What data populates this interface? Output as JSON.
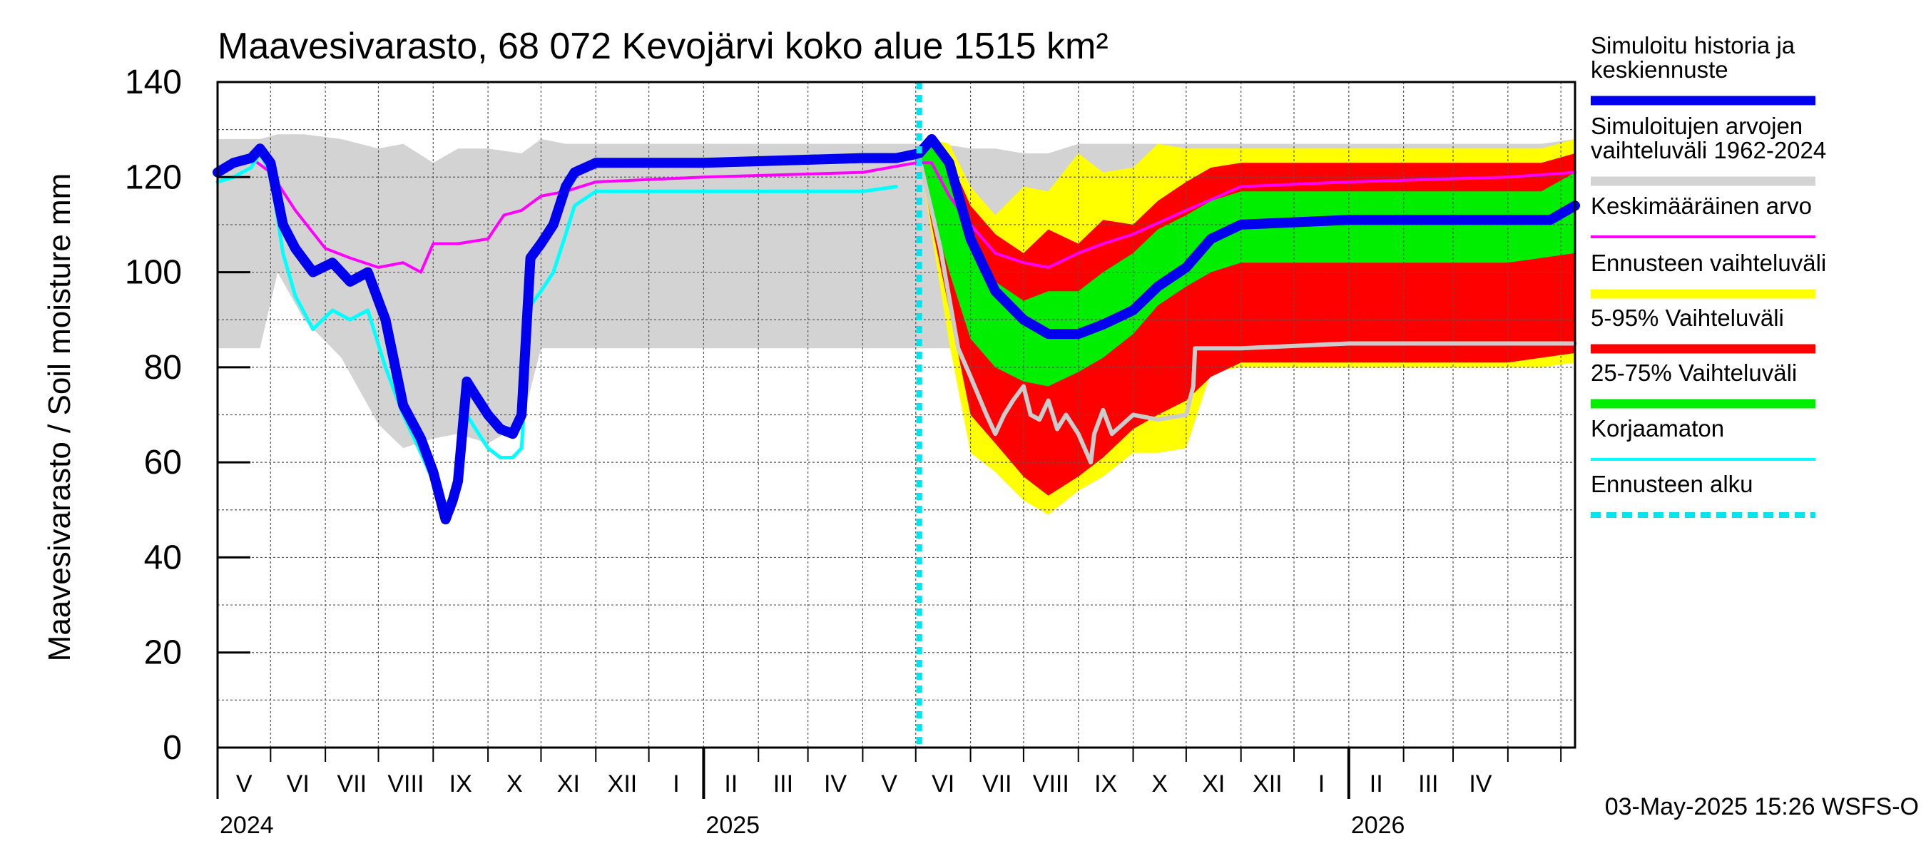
{
  "chart_data": {
    "type": "area",
    "title": "Maavesivarasto, 68 072 Kevojärvi koko alue 1515 km²",
    "ylabel": "Maavesivarasto / Soil moisture   mm",
    "ylim": [
      0,
      140
    ],
    "yticks": [
      0,
      20,
      40,
      60,
      80,
      100,
      120,
      140
    ],
    "x_range": [
      "2024-04-01",
      "2026-05-09"
    ],
    "forecast_start": "2025-05-03",
    "grid": true,
    "legend_position": "right",
    "months": [
      "V",
      "VI",
      "VII",
      "VIII",
      "IX",
      "X",
      "XI",
      "XII",
      "I",
      "II",
      "III",
      "IV",
      "V",
      "VI",
      "VII",
      "VIII",
      "IX",
      "X",
      "XI",
      "XII",
      "I",
      "II",
      "III",
      "IV"
    ],
    "years": [
      "2024",
      "2025",
      "2026"
    ],
    "legend": [
      {
        "label": "Simuloitu historia ja keskiennuste",
        "color": "#0000ee",
        "style": "thick"
      },
      {
        "label": "Simuloitujen arvojen vaihteluväli 1962-2024",
        "color": "#d3d3d3",
        "style": "thick"
      },
      {
        "label": "Keskimääräinen arvo",
        "color": "#ff00ff",
        "style": "thin"
      },
      {
        "label": "Ennusteen vaihteluväli",
        "color": "#ffff00",
        "style": "thick"
      },
      {
        "label": "5-95% Vaihteluväli",
        "color": "#ff0000",
        "style": "thick"
      },
      {
        "label": "25-75% Vaihteluväli",
        "color": "#00ee00",
        "style": "thick"
      },
      {
        "label": "Korjaamaton",
        "color": "#00ffff",
        "style": "thin"
      },
      {
        "label": "Ennusteen alku",
        "color": "#00e5ee",
        "style": "dashed"
      }
    ],
    "footer": "03-May-2025 15:26 WSFS-O",
    "series": {
      "hist_band": {
        "name": "Simuloitujen arvojen vaihteluväli 1962-2024",
        "x": [
          "2024-04-01",
          "2024-04-20",
          "2024-04-25",
          "2024-05-05",
          "2024-05-20",
          "2024-06-10",
          "2024-07-01",
          "2024-07-15",
          "2024-08-01",
          "2024-08-15",
          "2024-09-01",
          "2024-09-20",
          "2024-10-01",
          "2024-10-15",
          "2024-11-01",
          "2025-01-01",
          "2025-04-10",
          "2025-04-20",
          "2025-05-01",
          "2025-05-15",
          "2025-06-01",
          "2025-06-15",
          "2025-07-01",
          "2025-07-15",
          "2025-08-01",
          "2025-08-15",
          "2025-09-01",
          "2025-10-01",
          "2025-11-01",
          "2026-01-01",
          "2026-04-10",
          "2026-04-20",
          "2026-05-09"
        ],
        "upper": [
          128,
          128,
          128,
          129,
          129,
          128,
          126,
          127,
          123,
          126,
          126,
          125,
          128,
          127,
          127,
          127,
          127,
          127,
          127,
          127,
          126,
          126,
          125,
          125,
          127,
          127,
          127,
          127,
          127,
          127,
          127,
          127,
          128
        ],
        "lower": [
          84,
          84,
          84,
          100,
          90,
          82,
          68,
          63,
          65,
          66,
          64,
          68,
          84,
          84,
          84,
          84,
          84,
          84,
          84,
          84,
          84,
          84,
          84,
          84,
          84,
          84,
          84,
          84,
          84,
          84,
          84,
          84,
          84
        ]
      },
      "yellow_band": {
        "name": "Ennusteen vaihteluväli",
        "x": [
          "2025-05-03",
          "2025-05-10",
          "2025-05-20",
          "2025-06-01",
          "2025-06-15",
          "2025-07-01",
          "2025-07-15",
          "2025-08-01",
          "2025-08-15",
          "2025-09-01",
          "2025-09-15",
          "2025-10-01",
          "2025-10-15",
          "2025-11-01",
          "2026-01-01",
          "2026-04-01",
          "2026-04-20",
          "2026-05-09"
        ],
        "upper": [
          126,
          128,
          127,
          118,
          112,
          118,
          117,
          125,
          121,
          122,
          127,
          126,
          126,
          126,
          126,
          126,
          126,
          128
        ],
        "lower": [
          124,
          108,
          85,
          62,
          58,
          52,
          49,
          54,
          57,
          62,
          62,
          63,
          79,
          80,
          80,
          80,
          80,
          81
        ]
      },
      "red_band": {
        "name": "5-95% Vaihteluväli",
        "x": [
          "2025-05-03",
          "2025-05-10",
          "2025-05-20",
          "2025-06-01",
          "2025-06-15",
          "2025-07-01",
          "2025-07-15",
          "2025-08-01",
          "2025-08-15",
          "2025-09-01",
          "2025-09-15",
          "2025-10-01",
          "2025-10-15",
          "2025-11-01",
          "2026-01-01",
          "2026-04-01",
          "2026-04-20",
          "2026-05-09"
        ],
        "upper": [
          126,
          127,
          124,
          114,
          108,
          104,
          109,
          106,
          111,
          110,
          115,
          119,
          122,
          123,
          123,
          123,
          123,
          125
        ],
        "lower": [
          124,
          110,
          92,
          70,
          64,
          57,
          53,
          57,
          61,
          67,
          70,
          73,
          78,
          81,
          81,
          81,
          82,
          83
        ]
      },
      "green_band": {
        "name": "25-75% Vaihteluväli",
        "x": [
          "2025-05-03",
          "2025-05-10",
          "2025-05-20",
          "2025-06-01",
          "2025-06-15",
          "2025-07-01",
          "2025-07-15",
          "2025-08-01",
          "2025-08-15",
          "2025-09-01",
          "2025-09-15",
          "2025-10-01",
          "2025-10-15",
          "2025-11-01",
          "2026-01-01",
          "2026-04-01",
          "2026-04-20",
          "2026-05-09"
        ],
        "upper": [
          126,
          127,
          123,
          108,
          98,
          94,
          96,
          96,
          100,
          104,
          109,
          112,
          115,
          117,
          117,
          117,
          117,
          121
        ],
        "lower": [
          124,
          113,
          100,
          86,
          80,
          77,
          76,
          79,
          82,
          87,
          93,
          97,
          100,
          102,
          102,
          102,
          103,
          104
        ]
      },
      "simulated": {
        "name": "Simuloitu historia ja keskiennuste",
        "x": [
          "2024-04-01",
          "2024-04-10",
          "2024-04-20",
          "2024-04-25",
          "2024-05-01",
          "2024-05-08",
          "2024-05-15",
          "2024-05-25",
          "2024-06-05",
          "2024-06-15",
          "2024-06-25",
          "2024-07-05",
          "2024-07-15",
          "2024-07-25",
          "2024-08-01",
          "2024-08-08",
          "2024-08-12",
          "2024-08-15",
          "2024-08-20",
          "2024-08-25",
          "2024-09-01",
          "2024-09-08",
          "2024-09-15",
          "2024-09-20",
          "2024-09-25",
          "2024-10-01",
          "2024-10-08",
          "2024-10-15",
          "2024-10-20",
          "2024-11-01",
          "2025-01-01",
          "2025-04-01",
          "2025-04-20",
          "2025-05-03",
          "2025-05-10",
          "2025-05-20",
          "2025-06-01",
          "2025-06-15",
          "2025-07-01",
          "2025-07-15",
          "2025-08-01",
          "2025-08-15",
          "2025-09-01",
          "2025-09-15",
          "2025-10-01",
          "2025-10-15",
          "2025-11-01",
          "2026-01-01",
          "2026-04-01",
          "2026-04-25",
          "2026-05-09"
        ],
        "y": [
          121,
          123,
          124,
          126,
          123,
          110,
          105,
          100,
          102,
          98,
          100,
          90,
          72,
          65,
          58,
          48,
          52,
          56,
          77,
          74,
          70,
          67,
          66,
          70,
          103,
          106,
          110,
          118,
          121,
          123,
          123,
          124,
          124,
          125,
          128,
          123,
          107,
          96,
          90,
          87,
          87,
          89,
          92,
          97,
          101,
          107,
          110,
          111,
          111,
          111,
          114
        ]
      },
      "uncorrected": {
        "name": "Korjaamaton",
        "x": [
          "2024-04-01",
          "2024-04-10",
          "2024-04-20",
          "2024-04-25",
          "2024-05-01",
          "2024-05-08",
          "2024-05-15",
          "2024-05-25",
          "2024-06-05",
          "2024-06-15",
          "2024-06-25",
          "2024-07-05",
          "2024-07-15",
          "2024-07-25",
          "2024-08-01",
          "2024-08-08",
          "2024-08-12",
          "2024-08-15",
          "2024-08-20",
          "2024-08-25",
          "2024-09-01",
          "2024-09-08",
          "2024-09-15",
          "2024-09-20",
          "2024-09-25",
          "2024-10-01",
          "2024-10-08",
          "2024-10-15",
          "2024-10-20",
          "2024-11-01",
          "2025-01-01",
          "2025-04-01",
          "2025-04-20"
        ],
        "y": [
          119,
          120,
          122,
          125,
          121,
          104,
          95,
          88,
          92,
          90,
          92,
          80,
          70,
          62,
          56,
          50,
          54,
          57,
          70,
          67,
          63,
          61,
          61,
          63,
          93,
          96,
          100,
          108,
          114,
          117,
          117,
          117,
          118
        ]
      },
      "mean": {
        "name": "Keskimääräinen arvo",
        "x": [
          "2024-04-01",
          "2024-04-20",
          "2024-05-01",
          "2024-05-15",
          "2024-06-01",
          "2024-06-15",
          "2024-07-01",
          "2024-07-15",
          "2024-07-25",
          "2024-08-01",
          "2024-08-15",
          "2024-09-01",
          "2024-09-10",
          "2024-09-20",
          "2024-10-01",
          "2024-10-15",
          "2024-11-01",
          "2025-01-01",
          "2025-04-01",
          "2025-05-01",
          "2025-05-10",
          "2025-05-20",
          "2025-06-01",
          "2025-06-15",
          "2025-07-01",
          "2025-07-15",
          "2025-08-01",
          "2025-08-15",
          "2025-09-01",
          "2025-10-01",
          "2025-11-01",
          "2026-01-01",
          "2026-04-01",
          "2026-05-09"
        ],
        "y": [
          121,
          124,
          121,
          113,
          105,
          103,
          101,
          102,
          100,
          106,
          106,
          107,
          112,
          113,
          116,
          117,
          119,
          120,
          121,
          123,
          123,
          116,
          110,
          104,
          102,
          101,
          104,
          106,
          108,
          113,
          118,
          119,
          120,
          121
        ]
      },
      "gray_line": {
        "name": "",
        "x": [
          "2025-05-03",
          "2025-05-15",
          "2025-05-25",
          "2025-06-01",
          "2025-06-10",
          "2025-06-15",
          "2025-06-20",
          "2025-06-25",
          "2025-07-01",
          "2025-07-05",
          "2025-07-10",
          "2025-07-15",
          "2025-07-20",
          "2025-07-25",
          "2025-08-01",
          "2025-08-08",
          "2025-08-10",
          "2025-08-15",
          "2025-08-20",
          "2025-09-01",
          "2025-09-15",
          "2025-10-01",
          "2025-10-05",
          "2025-10-06",
          "2025-11-01",
          "2026-01-01",
          "2026-04-01",
          "2026-05-09"
        ],
        "y": [
          124,
          105,
          84,
          78,
          70,
          66,
          70,
          73,
          76,
          70,
          69,
          73,
          67,
          70,
          66,
          60,
          66,
          71,
          66,
          70,
          69,
          70,
          76,
          84,
          84,
          85,
          85,
          85
        ]
      }
    }
  }
}
